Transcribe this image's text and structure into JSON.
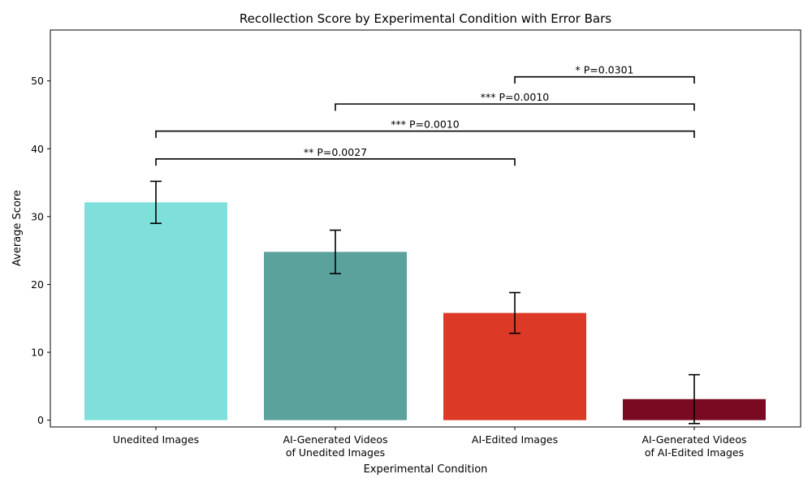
{
  "chart_data": {
    "type": "bar",
    "title": "Recollection Score by Experimental Condition with Error Bars",
    "xlabel": "Experimental Condition",
    "ylabel": "Average Score",
    "categories": [
      [
        "Unedited Images"
      ],
      [
        "AI-Generated Videos",
        "of Unedited Images"
      ],
      [
        "AI-Edited Images"
      ],
      [
        "AI-Generated Videos",
        "of AI-Edited Images"
      ]
    ],
    "values": [
      32.1,
      24.8,
      15.8,
      3.1
    ],
    "errors": [
      3.1,
      3.2,
      3.0,
      3.6
    ],
    "colors": [
      "#7fe0db",
      "#5ba29d",
      "#dc3a26",
      "#7a0a22"
    ],
    "ylim": [
      -1,
      57.5
    ],
    "yticks": [
      0,
      10,
      20,
      30,
      40,
      50
    ],
    "grid": false,
    "legend": "none",
    "significance": [
      {
        "from": 0,
        "to": 2,
        "y": 38.5,
        "label": "** P=0.0027"
      },
      {
        "from": 0,
        "to": 3,
        "y": 42.6,
        "label": "*** P=0.0010"
      },
      {
        "from": 1,
        "to": 3,
        "y": 46.6,
        "label": "*** P=0.0010"
      },
      {
        "from": 2,
        "to": 3,
        "y": 50.6,
        "label": "* P=0.0301"
      }
    ]
  }
}
